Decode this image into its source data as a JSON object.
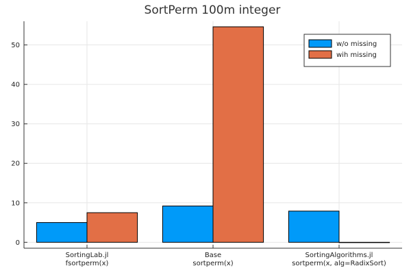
{
  "chart_data": {
    "type": "bar",
    "title": "SortPerm 100m integer",
    "xlabel": "",
    "ylabel": "",
    "categories": [
      [
        "SortingLab.jl",
        "fsortperm(x)"
      ],
      [
        "Base",
        "sortperm(x)"
      ],
      [
        "SortingAlgorithms.jl",
        "sortperm(x, alg=RadixSort)"
      ]
    ],
    "series": [
      {
        "name": "w/o missing",
        "color": "#009af9",
        "values": [
          5.0,
          9.2,
          7.9
        ]
      },
      {
        "name": "wih missing",
        "color": "#e26f46",
        "values": [
          7.5,
          54.6,
          0.0
        ]
      }
    ],
    "ylim": [
      -1.5,
      56
    ],
    "yticks": [
      0,
      10,
      20,
      30,
      40,
      50
    ],
    "grid": true,
    "legend": "top-right"
  }
}
